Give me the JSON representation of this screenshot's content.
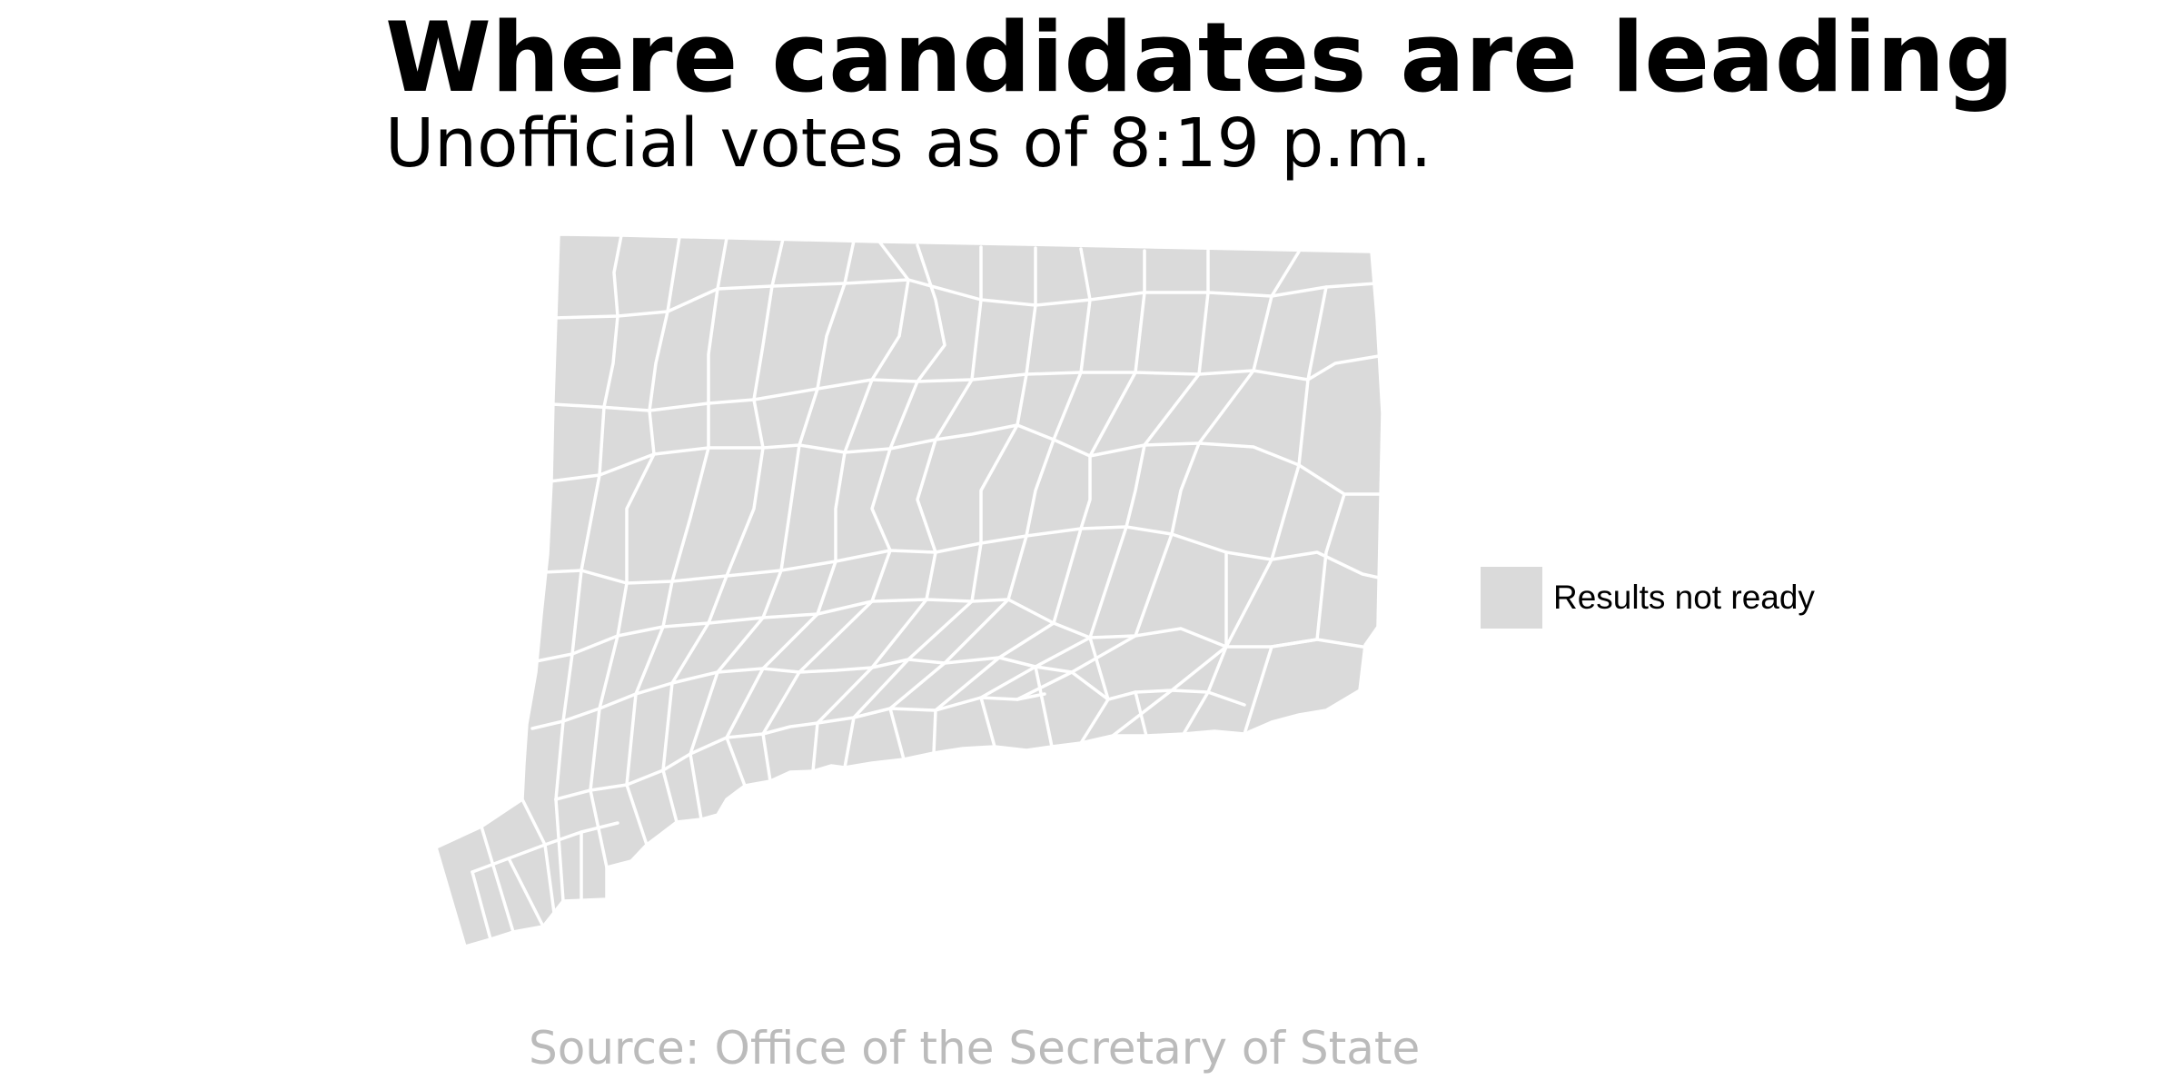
{
  "title": "Where candidates are leading",
  "subtitle": "Unofficial votes as of 8:19 p.m.",
  "legend": {
    "label": "Results not ready",
    "color": "#dadada"
  },
  "source": "Source: Office of the Secretary of State",
  "colors": {
    "town_fill": "#dadada",
    "town_border": "#ffffff",
    "source_text": "#bbbbbb"
  }
}
